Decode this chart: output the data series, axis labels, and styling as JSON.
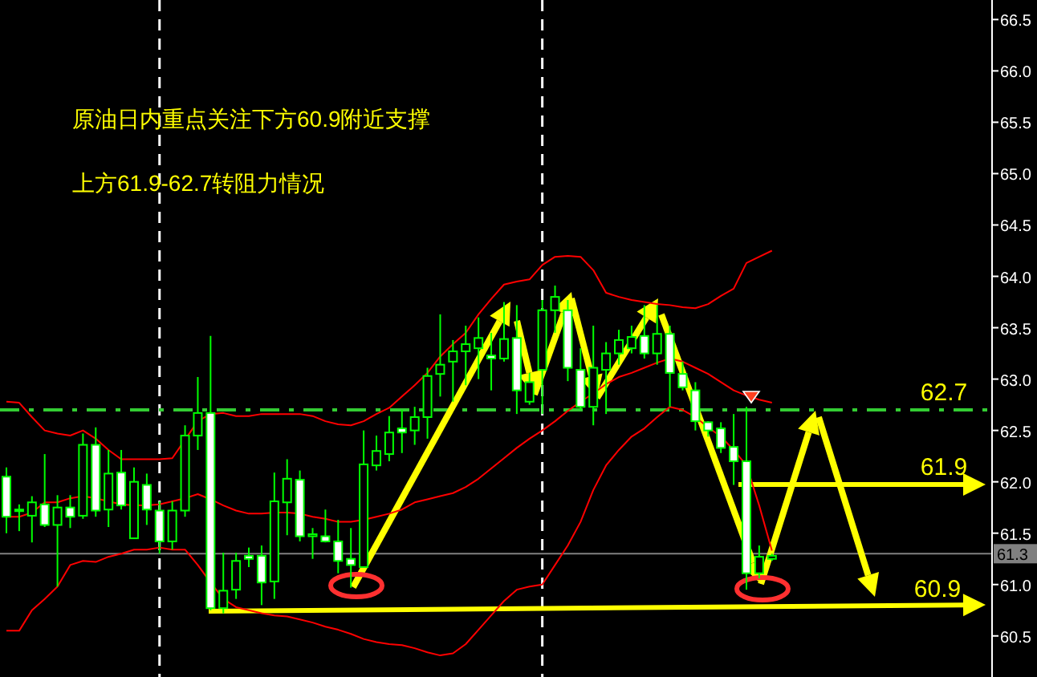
{
  "chart_data": {
    "type": "candlestick",
    "categories": [
      null,
      null,
      null,
      null,
      null,
      null,
      null,
      null,
      null,
      null,
      null,
      null,
      null,
      null,
      null,
      null,
      null,
      null,
      null,
      null,
      null,
      null,
      null,
      null,
      null,
      null,
      null,
      null,
      null,
      null,
      null,
      null,
      null,
      null,
      null,
      null,
      null,
      null,
      null,
      null,
      null,
      null,
      null,
      null,
      null,
      null,
      null,
      null,
      null,
      null,
      null,
      null,
      null,
      null,
      null,
      null,
      null,
      null,
      null,
      null,
      null,
      null,
      null,
      null,
      null,
      null,
      null,
      null,
      null,
      null,
      null,
      null,
      null,
      null,
      null,
      null,
      null,
      null
    ],
    "ohlc": [
      [
        62.05,
        62.14,
        61.5,
        61.66
      ],
      [
        61.73,
        61.78,
        61.52,
        61.72
      ],
      [
        61.67,
        61.86,
        61.41,
        61.8
      ],
      [
        61.78,
        62.27,
        61.56,
        61.58
      ],
      [
        61.58,
        61.87,
        60.98,
        61.75
      ],
      [
        61.75,
        61.87,
        61.55,
        61.66
      ],
      [
        61.67,
        62.47,
        61.64,
        62.36
      ],
      [
        62.36,
        62.53,
        61.66,
        61.72
      ],
      [
        61.73,
        62.31,
        61.56,
        62.08
      ],
      [
        62.09,
        62.31,
        61.73,
        61.77
      ],
      [
        61.45,
        62.14,
        61.45,
        62.0
      ],
      [
        61.97,
        62.08,
        61.58,
        61.73
      ],
      [
        61.72,
        61.81,
        61.3,
        61.42
      ],
      [
        61.42,
        61.81,
        61.34,
        61.72
      ],
      [
        61.72,
        62.55,
        61.66,
        62.45
      ],
      [
        62.45,
        63.02,
        62.31,
        62.67
      ],
      [
        62.67,
        63.42,
        60.75,
        60.77
      ],
      [
        60.77,
        61.31,
        60.72,
        60.94
      ],
      [
        60.95,
        61.31,
        60.86,
        61.23
      ],
      [
        61.28,
        61.36,
        61.17,
        61.25
      ],
      [
        61.28,
        61.38,
        60.8,
        61.02
      ],
      [
        61.03,
        62.09,
        60.86,
        61.81
      ],
      [
        61.8,
        62.22,
        61.48,
        62.03
      ],
      [
        62.02,
        62.11,
        61.42,
        61.47
      ],
      [
        61.47,
        61.55,
        61.25,
        61.49
      ],
      [
        61.47,
        61.73,
        61.41,
        61.42
      ],
      [
        61.42,
        61.63,
        61.11,
        61.23
      ],
      [
        61.25,
        61.55,
        60.97,
        61.19
      ],
      [
        61.17,
        62.5,
        61.17,
        62.17
      ],
      [
        62.16,
        62.45,
        62.11,
        62.3
      ],
      [
        62.27,
        62.64,
        62.2,
        62.48
      ],
      [
        62.52,
        62.7,
        62.28,
        62.48
      ],
      [
        62.5,
        62.73,
        62.36,
        62.63
      ],
      [
        62.63,
        63.11,
        62.42,
        63.03
      ],
      [
        63.05,
        63.63,
        62.83,
        63.14
      ],
      [
        63.17,
        63.38,
        62.78,
        63.27
      ],
      [
        63.27,
        63.52,
        62.94,
        63.34
      ],
      [
        63.3,
        63.6,
        63.0,
        63.4
      ],
      [
        63.23,
        63.45,
        62.89,
        63.2
      ],
      [
        63.2,
        63.75,
        63.17,
        63.39
      ],
      [
        63.4,
        63.72,
        62.66,
        62.89
      ],
      [
        62.78,
        63.06,
        62.75,
        62.97
      ],
      [
        63.09,
        63.77,
        62.66,
        63.67
      ],
      [
        63.67,
        63.91,
        63.45,
        63.8
      ],
      [
        63.67,
        63.77,
        62.98,
        63.11
      ],
      [
        63.09,
        63.3,
        62.7,
        62.73
      ],
      [
        62.73,
        63.52,
        62.55,
        63.11
      ],
      [
        63.09,
        63.36,
        62.66,
        63.25
      ],
      [
        63.25,
        63.48,
        63.14,
        63.38
      ],
      [
        63.3,
        63.52,
        63.25,
        63.41
      ],
      [
        63.42,
        63.72,
        63.2,
        63.25
      ],
      [
        63.25,
        63.72,
        63.14,
        63.44
      ],
      [
        63.44,
        63.52,
        62.73,
        63.06
      ],
      [
        63.05,
        63.17,
        62.89,
        62.92
      ],
      [
        62.89,
        62.97,
        62.5,
        62.59
      ],
      [
        62.58,
        62.59,
        62.44,
        62.5
      ],
      [
        62.52,
        62.58,
        62.28,
        62.33
      ],
      [
        62.34,
        62.66,
        61.97,
        62.2
      ],
      [
        62.2,
        62.73,
        60.95,
        61.11
      ],
      [
        61.11,
        61.38,
        61.06,
        61.27
      ],
      [
        61.25,
        61.3,
        61.23,
        61.28
      ],
      null,
      null,
      null,
      null,
      null,
      null,
      null,
      null,
      null,
      null,
      null,
      null,
      null,
      null,
      null,
      null,
      null
    ],
    "series": [
      {
        "type": "line",
        "color": "#ff0000",
        "values": [
          62.78,
          62.77,
          62.63,
          62.5,
          62.47,
          62.45,
          62.5,
          62.42,
          62.31,
          62.22,
          62.22,
          62.22,
          62.22,
          62.23,
          62.41,
          62.59,
          62.66,
          62.67,
          62.64,
          62.64,
          62.66,
          62.66,
          62.66,
          62.66,
          62.64,
          62.59,
          62.56,
          62.55,
          62.59,
          62.66,
          62.72,
          62.83,
          62.94,
          63.06,
          63.22,
          63.34,
          63.45,
          63.63,
          63.78,
          63.92,
          63.95,
          63.97,
          64.11,
          64.19,
          64.2,
          64.19,
          64.06,
          63.84,
          63.8,
          63.77,
          63.75,
          63.73,
          63.72,
          63.7,
          63.69,
          63.73,
          63.81,
          63.88,
          64.13,
          64.19,
          64.25,
          null,
          null,
          null,
          null,
          null,
          null,
          null,
          null,
          null,
          null,
          null,
          null,
          null,
          null,
          null,
          null,
          null
        ]
      },
      {
        "type": "line",
        "color": "#ff0000",
        "values": [
          61.66,
          61.66,
          61.7,
          61.8,
          61.8,
          61.84,
          61.86,
          61.84,
          61.81,
          61.78,
          61.77,
          61.77,
          61.78,
          61.81,
          61.84,
          61.88,
          61.83,
          61.77,
          61.72,
          61.69,
          61.69,
          61.7,
          61.7,
          61.69,
          61.66,
          61.64,
          61.61,
          61.61,
          61.63,
          61.66,
          61.69,
          61.73,
          61.8,
          61.83,
          61.86,
          61.89,
          61.95,
          62.03,
          62.13,
          62.23,
          62.33,
          62.42,
          62.5,
          62.59,
          62.69,
          62.78,
          62.86,
          62.95,
          63.02,
          63.06,
          63.11,
          63.16,
          63.2,
          63.17,
          63.11,
          63.05,
          62.97,
          62.89,
          62.84,
          62.8,
          62.77,
          null,
          null,
          null,
          null,
          null,
          null,
          null,
          null,
          null,
          null,
          null,
          null,
          null,
          null,
          null,
          null,
          null
        ]
      },
      {
        "type": "line",
        "color": "#ff0000",
        "values": [
          60.55,
          60.55,
          60.75,
          60.86,
          60.98,
          61.19,
          61.23,
          61.22,
          61.27,
          61.3,
          61.34,
          61.34,
          61.36,
          61.34,
          61.34,
          61.19,
          61.02,
          60.86,
          60.78,
          60.75,
          60.72,
          60.7,
          60.69,
          60.66,
          60.63,
          60.59,
          60.56,
          60.52,
          60.47,
          60.44,
          60.42,
          60.41,
          60.38,
          60.34,
          60.31,
          60.33,
          60.42,
          60.56,
          60.7,
          60.84,
          60.95,
          60.98,
          61.0,
          61.19,
          61.38,
          61.61,
          61.92,
          62.16,
          62.31,
          62.44,
          62.52,
          62.63,
          62.73,
          62.7,
          62.63,
          62.53,
          62.44,
          62.31,
          62.16,
          61.77,
          61.33,
          null,
          null,
          null,
          null,
          null,
          null,
          null,
          null,
          null,
          null,
          null,
          null,
          null,
          null,
          null,
          null,
          null
        ]
      }
    ],
    "ylim": [
      60.1,
      66.69
    ],
    "yticks": [
      66.5,
      {
        "value": 66,
        "label": "66.0"
      },
      65.5,
      {
        "value": 65,
        "label": "65.0"
      },
      64.5,
      {
        "value": 64,
        "label": "64.0"
      },
      63.5,
      {
        "value": 63,
        "label": "63.0"
      },
      62.5,
      {
        "value": 62,
        "label": "62.0"
      },
      61.5,
      {
        "value": 61,
        "label": "61.0"
      },
      60.5
    ],
    "tick_labels": "y",
    "ref_lines": [
      {
        "axis": "y",
        "value": 62.7,
        "label": "62.7",
        "color": "#33cc33",
        "line_style": "dashed"
      },
      {
        "axis": "y",
        "value": 61.3,
        "label": "61.3",
        "color": "#808080",
        "line_style": "solid"
      }
    ],
    "annotations": [
      "原油日内重点关注下方60.9附近支撑",
      "上方61.9-62.7转阻力情况",
      "61.9",
      "60.9"
    ]
  }
}
